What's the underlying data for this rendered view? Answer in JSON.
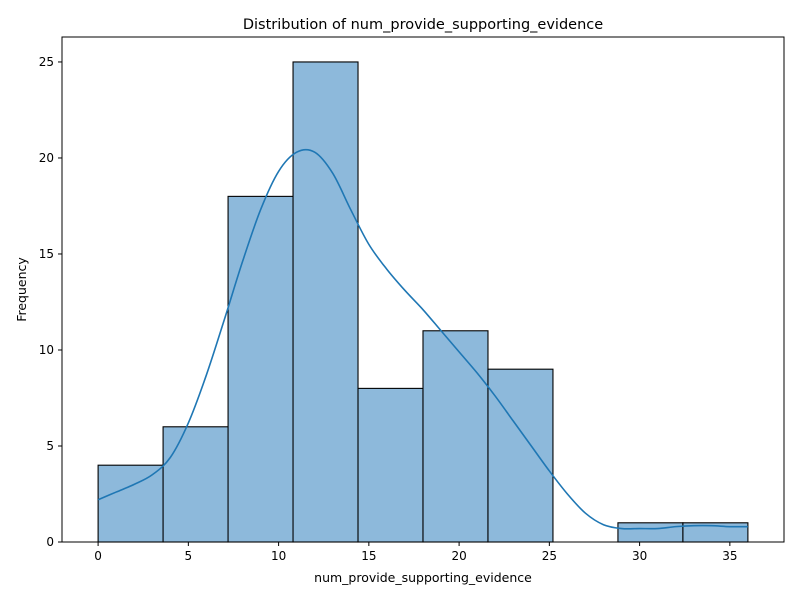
{
  "chart_data": {
    "type": "bar",
    "title": "Distribution of num_provide_supporting_evidence",
    "xlabel": "num_provide_supporting_evidence",
    "ylabel": "Frequency",
    "bins": [
      {
        "start": 0,
        "end": 3.6,
        "count": 4
      },
      {
        "start": 3.6,
        "end": 7.2,
        "count": 6
      },
      {
        "start": 7.2,
        "end": 10.8,
        "count": 18
      },
      {
        "start": 10.8,
        "end": 14.4,
        "count": 25
      },
      {
        "start": 14.4,
        "end": 18.0,
        "count": 8
      },
      {
        "start": 18.0,
        "end": 21.6,
        "count": 11
      },
      {
        "start": 21.6,
        "end": 25.2,
        "count": 9
      },
      {
        "start": 25.2,
        "end": 28.8,
        "count": 0
      },
      {
        "start": 28.8,
        "end": 32.4,
        "count": 1
      },
      {
        "start": 32.4,
        "end": 36.0,
        "count": 1
      }
    ],
    "kde": {
      "x": [
        0,
        1,
        2,
        3,
        4,
        5,
        6,
        7,
        8,
        9,
        10,
        11,
        12,
        13,
        14,
        15,
        16,
        17,
        18,
        19,
        20,
        21,
        22,
        23,
        24,
        25,
        26,
        27,
        28,
        29,
        30,
        31,
        32,
        33,
        34,
        35,
        36
      ],
      "y": [
        2.2,
        2.6,
        3.0,
        3.5,
        4.4,
        6.2,
        8.7,
        11.6,
        14.6,
        17.3,
        19.3,
        20.3,
        20.3,
        19.2,
        17.3,
        15.5,
        14.2,
        13.1,
        12.1,
        11.0,
        9.9,
        8.8,
        7.6,
        6.3,
        5.0,
        3.7,
        2.5,
        1.5,
        0.9,
        0.7,
        0.7,
        0.7,
        0.8,
        0.85,
        0.85,
        0.8,
        0.8
      ]
    },
    "xlim": [
      -2,
      38
    ],
    "ylim": [
      0,
      26.3
    ],
    "xticks": [
      0,
      5,
      10,
      15,
      20,
      25,
      30,
      35
    ],
    "yticks": [
      0,
      5,
      10,
      15,
      20,
      25
    ],
    "grid": false,
    "colors": {
      "bar_fill": "#8db9db",
      "bar_edge": "#000000",
      "kde_line": "#1f77b4",
      "axis": "#000000"
    }
  }
}
